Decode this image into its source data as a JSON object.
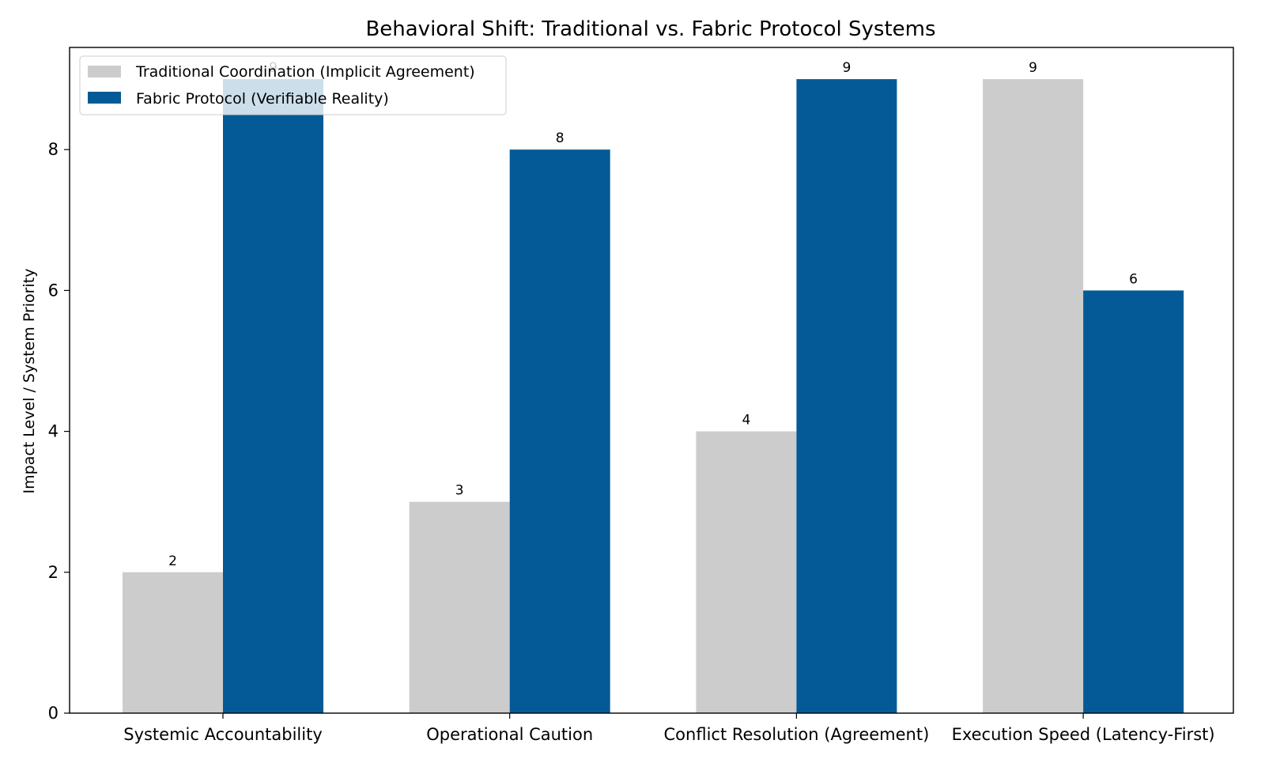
{
  "chart_data": {
    "type": "bar",
    "title": "Behavioral Shift: Traditional vs. Fabric Protocol Systems",
    "xlabel": "",
    "ylabel": "Impact Level / System Priority",
    "categories": [
      "Systemic Accountability",
      "Operational Caution",
      "Conflict Resolution (Agreement)",
      "Execution Speed (Latency-First)"
    ],
    "series": [
      {
        "name": "Traditional Coordination (Implicit Agreement)",
        "values": [
          2,
          3,
          4,
          9
        ],
        "color": "#cccccc"
      },
      {
        "name": "Fabric Protocol (Verifiable Reality)",
        "values": [
          9,
          8,
          9,
          6
        ],
        "color": "#045a96"
      }
    ],
    "ylim": [
      0,
      9.45
    ],
    "yticks": [
      0,
      2,
      4,
      6,
      8
    ],
    "grid": false,
    "legend_position": "top-left",
    "data_labels": true
  }
}
